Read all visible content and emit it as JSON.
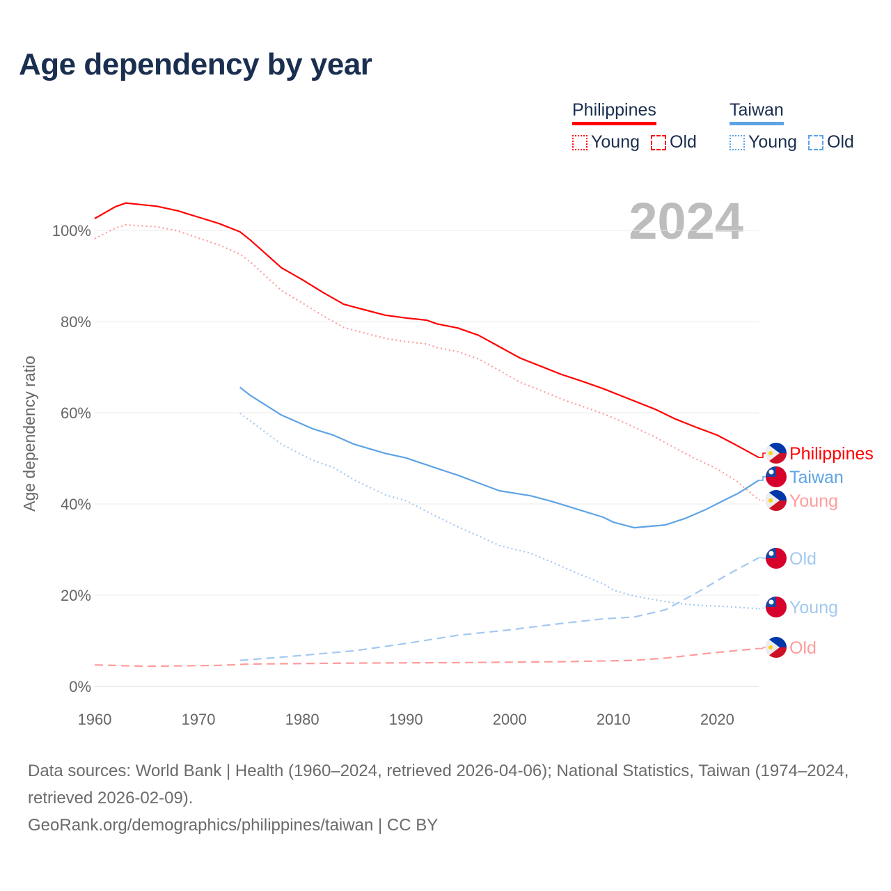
{
  "title": "Age dependency by year",
  "legend": {
    "groups": [
      {
        "name": "Philippines",
        "color": "#ff0000",
        "items": [
          {
            "label": "Young",
            "style": "dotted"
          },
          {
            "label": "Old",
            "style": "dashed"
          }
        ]
      },
      {
        "name": "Taiwan",
        "color": "#5ea3e6",
        "items": [
          {
            "label": "Young",
            "style": "dotted"
          },
          {
            "label": "Old",
            "style": "dashed"
          }
        ]
      }
    ]
  },
  "year_label": "2024",
  "source_lines": [
    "Data sources: World Bank | Health (1960–2024, retrieved 2026-04-06); National Statistics, Taiwan (1974–2024, retrieved 2026-02-09).",
    "GeoRank.org/demographics/philippines/taiwan | CC BY"
  ],
  "chart_data": {
    "type": "line",
    "title": "Age dependency by year",
    "xlabel": "",
    "ylabel": "Age dependency ratio",
    "xlim": [
      1960,
      2024
    ],
    "ylim": [
      0,
      110
    ],
    "x_ticks": [
      1960,
      1970,
      1980,
      1990,
      2000,
      2010,
      2020
    ],
    "y_ticks": [
      0,
      20,
      40,
      60,
      80,
      100
    ],
    "y_tick_labels": [
      "0%",
      "20%",
      "40%",
      "60%",
      "80%",
      "100%"
    ],
    "grid": true,
    "legend_position": "top-right",
    "series": [
      {
        "name": "Philippines",
        "end_label": "Philippines",
        "flag": "philippines",
        "color": "#ff0000",
        "dash": "solid",
        "x": [
          1960,
          1962,
          1963,
          1966,
          1968,
          1970,
          1972,
          1974,
          1975,
          1978,
          1980,
          1982,
          1984,
          1986,
          1988,
          1990,
          1992,
          1993,
          1995,
          1997,
          1999,
          2001,
          2003,
          2005,
          2007,
          2009,
          2011,
          2014,
          2016,
          2018,
          2020,
          2022,
          2024
        ],
        "y": [
          102.6,
          105.2,
          106,
          105.3,
          104.3,
          102.9,
          101.5,
          99.7,
          97.9,
          91.8,
          89.2,
          86.4,
          83.8,
          82.6,
          81.4,
          80.8,
          80.3,
          79.5,
          78.6,
          77,
          74.5,
          72,
          70.2,
          68.4,
          66.9,
          65.3,
          63.5,
          60.8,
          58.6,
          56.8,
          55.1,
          52.7,
          50.2
        ]
      },
      {
        "name": "Taiwan",
        "end_label": "Taiwan",
        "flag": "taiwan",
        "color": "#5ea3e6",
        "dash": "solid",
        "x": [
          1974,
          1975,
          1978,
          1981,
          1983,
          1985,
          1988,
          1990,
          1993,
          1995,
          1997,
          1999,
          2002,
          2004,
          2006,
          2009,
          2010,
          2012,
          2015,
          2017,
          2019,
          2021,
          2022,
          2024
        ],
        "y": [
          65.6,
          63.8,
          59.5,
          56.5,
          55.1,
          53.1,
          51.1,
          50.1,
          47.8,
          46.3,
          44.6,
          42.9,
          41.8,
          40.6,
          39.2,
          37.1,
          36,
          34.8,
          35.4,
          36.9,
          38.9,
          41.2,
          42.3,
          45.2
        ]
      },
      {
        "name": "Philippines Young",
        "end_label": "Young",
        "flag": "philippines",
        "color": "#ff9c9c",
        "dash": "dotted",
        "x": [
          1960,
          1962,
          1963,
          1966,
          1968,
          1970,
          1972,
          1974,
          1975,
          1978,
          1980,
          1982,
          1984,
          1986,
          1988,
          1990,
          1992,
          1993,
          1995,
          1997,
          1999,
          2001,
          2003,
          2005,
          2007,
          2009,
          2011,
          2014,
          2016,
          2018,
          2020,
          2022,
          2024
        ],
        "y": [
          98.2,
          100.5,
          101.2,
          100.8,
          99.9,
          98.3,
          96.8,
          94.8,
          93.1,
          86.8,
          84.1,
          81.3,
          78.7,
          77.5,
          76.3,
          75.6,
          75.1,
          74.3,
          73.4,
          71.8,
          69.3,
          66.7,
          64.9,
          63,
          61.4,
          59.8,
          57.9,
          54.7,
          52.2,
          49.8,
          47.7,
          44.8,
          40.9
        ]
      },
      {
        "name": "Taiwan Old",
        "end_label": "Old",
        "flag": "taiwan",
        "color": "#a3c8f0",
        "dash": "dashed",
        "x": [
          1974,
          1978,
          1985,
          1990,
          1995,
          2000,
          2005,
          2009,
          2012,
          2015,
          2018,
          2021,
          2024
        ],
        "y": [
          5.7,
          6.4,
          7.8,
          9.4,
          11.2,
          12.4,
          13.8,
          14.8,
          15.2,
          16.8,
          20.5,
          24.5,
          28.2
        ]
      },
      {
        "name": "Taiwan Young",
        "end_label": "Young",
        "flag": "taiwan",
        "color": "#a3c8f0",
        "dash": "dotted",
        "x": [
          1974,
          1978,
          1981,
          1983,
          1985,
          1988,
          1990,
          1993,
          1995,
          1997,
          1999,
          2002,
          2004,
          2006,
          2009,
          2010,
          2012,
          2015,
          2017,
          2019,
          2021,
          2024
        ],
        "y": [
          59.9,
          53.1,
          49.6,
          48,
          45.3,
          42,
          40.7,
          37.2,
          35,
          33,
          30.9,
          29.2,
          27.3,
          25.3,
          22.5,
          21.1,
          19.8,
          18.6,
          18,
          17.7,
          17.5,
          17
        ]
      },
      {
        "name": "Philippines Old",
        "end_label": "Old",
        "flag": "philippines",
        "color": "#ff9c9c",
        "dash": "dashed",
        "x": [
          1960,
          1965,
          1972,
          1975,
          1985,
          1995,
          2005,
          2012,
          2015,
          2019,
          2024
        ],
        "y": [
          4.7,
          4.4,
          4.6,
          4.9,
          5.1,
          5.2,
          5.4,
          5.7,
          6.2,
          7.2,
          8.3
        ]
      }
    ]
  }
}
